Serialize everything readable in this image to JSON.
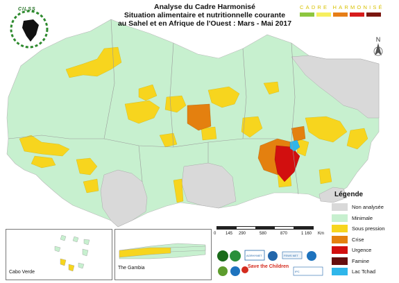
{
  "title": {
    "line1": "Analyse du Cadre Harmonisé",
    "line2": "Situation alimentaire et nutritionnelle courante",
    "line3": "au Sahel et en Afrique de l'Ouest : Mars - Mai 2017"
  },
  "brand": {
    "cadre_harmonise": "CADRE HARMONISÉ",
    "bar_colors": [
      "#8dc63f",
      "#f6ef5f",
      "#e67e17",
      "#d71c1c",
      "#7b1710"
    ]
  },
  "logo": {
    "text": "CILSS"
  },
  "compass": {
    "letter": "N"
  },
  "legend": {
    "title": "Légende",
    "items": [
      {
        "label": "Non analysée",
        "color": "#d9d9d9"
      },
      {
        "label": "Minimale",
        "color": "#c7f0cf"
      },
      {
        "label": "Sous pression",
        "color": "#f7d51e"
      },
      {
        "label": "Crise",
        "color": "#e4800f"
      },
      {
        "label": "Urgence",
        "color": "#d20f0f"
      },
      {
        "label": "Famine",
        "color": "#650e0e"
      },
      {
        "label": "Lac Tchad",
        "color": "#2fb6ea"
      }
    ]
  },
  "scale": {
    "ticks": [
      "0",
      "145",
      "290",
      "580",
      "870",
      "1 160"
    ],
    "unit": "Km"
  },
  "insets": {
    "cabo_verde": "Cabo Verde",
    "gambia": "The Gambia"
  },
  "partners": {
    "save_the_children": "Save the Children",
    "agrhymet": "AGRHYMET",
    "fews": "FEWS NET",
    "ipc": "IPC"
  }
}
